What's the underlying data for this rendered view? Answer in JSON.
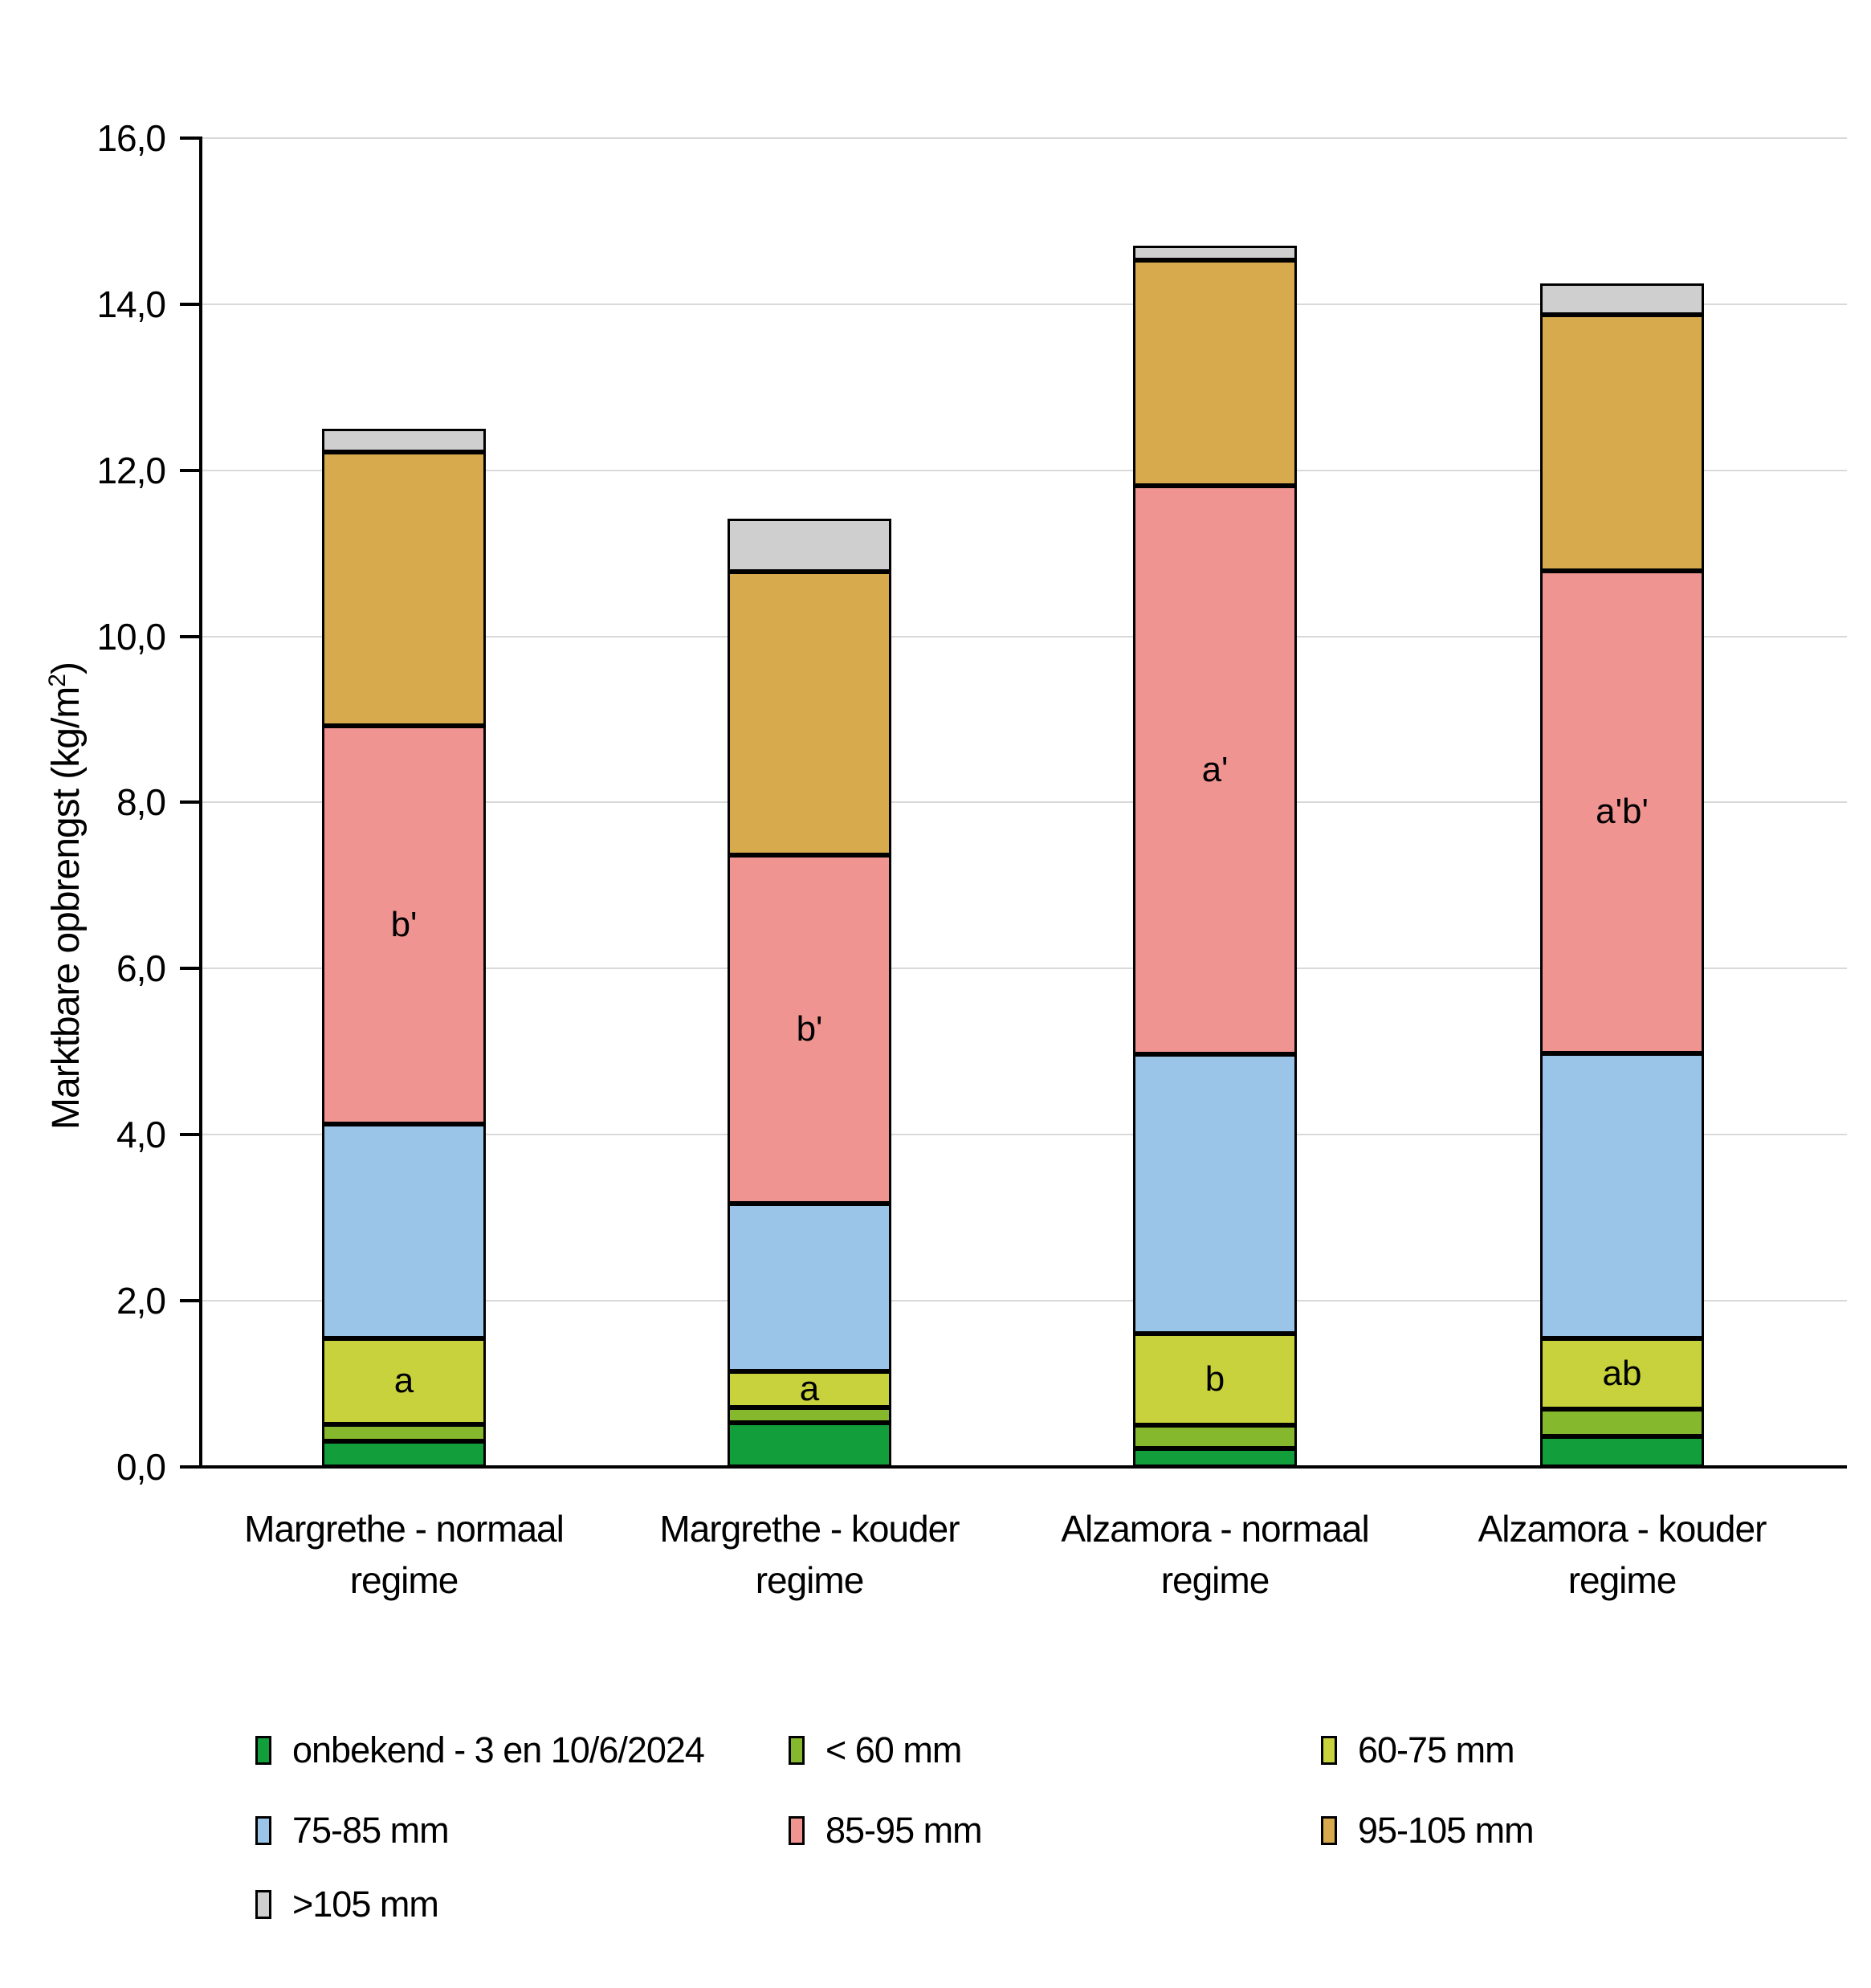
{
  "chart": {
    "y_axis": {
      "label_prefix": "Marktbare opbrengst (kg/m",
      "label_sup": "2",
      "label_suffix": ")",
      "tick_labels": [
        "0,0",
        "2,0",
        "4,0",
        "6,0",
        "8,0",
        "10,0",
        "12,0",
        "14,0",
        "16,0"
      ],
      "min": 0,
      "max": 16,
      "step": 2
    }
  },
  "chart_data": {
    "type": "bar",
    "stacked": true,
    "title": "",
    "ylabel": "Marktbare opbrengst (kg/m2)",
    "xlabel": "",
    "ylim": [
      0,
      16
    ],
    "ytick_step": 2,
    "grid": true,
    "legend_position": "bottom",
    "categories": [
      "Margrethe - normaal regime",
      "Margrethe - kouder regime",
      "Alzamora - normaal regime",
      "Alzamora - kouder regime"
    ],
    "category_lines": [
      [
        "Margrethe - normaal",
        "regime"
      ],
      [
        "Margrethe - kouder",
        "regime"
      ],
      [
        "Alzamora - normaal",
        "regime"
      ],
      [
        "Alzamora - kouder",
        "regime"
      ]
    ],
    "series": [
      {
        "name": "onbekend - 3 en 10/6/2024",
        "color": "#119E3B",
        "values": [
          0.31,
          0.53,
          0.22,
          0.37
        ],
        "annotations": [
          "",
          "",
          "",
          ""
        ]
      },
      {
        "name": "< 60 mm",
        "color": "#86B82D",
        "values": [
          0.2,
          0.19,
          0.28,
          0.33
        ],
        "annotations": [
          "",
          "",
          "",
          ""
        ]
      },
      {
        "name": "60-75 mm",
        "color": "#C8D23C",
        "values": [
          1.04,
          0.43,
          1.1,
          0.85
        ],
        "annotations": [
          "a",
          "a",
          "b",
          "ab"
        ]
      },
      {
        "name": "75-85 mm",
        "color": "#9AC4E8",
        "values": [
          2.58,
          2.02,
          3.37,
          3.43
        ],
        "annotations": [
          "",
          "",
          "",
          ""
        ]
      },
      {
        "name": "85-95 mm",
        "color": "#F09491",
        "values": [
          4.79,
          4.2,
          6.84,
          5.81
        ],
        "annotations": [
          "b'",
          "b'",
          "a'",
          "a'b'"
        ]
      },
      {
        "name": "95-105 mm",
        "color": "#D7AB4D",
        "values": [
          3.3,
          3.41,
          2.72,
          3.08
        ],
        "annotations": [
          "",
          "",
          "",
          ""
        ]
      },
      {
        "name": ">105 mm",
        "color": "#D0CFCF",
        "values": [
          0.28,
          0.64,
          0.17,
          0.38
        ],
        "annotations": [
          "",
          "",
          "",
          ""
        ]
      }
    ]
  }
}
